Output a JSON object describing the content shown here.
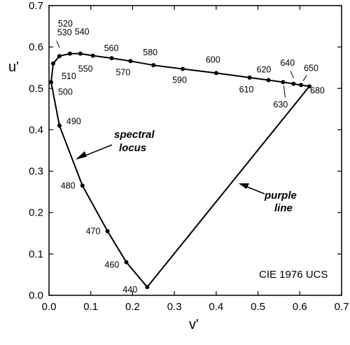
{
  "chart_data": {
    "type": "scatter",
    "title": "",
    "xlabel": "v'",
    "ylabel": "u'",
    "xlim": [
      0.0,
      0.7
    ],
    "ylim": [
      0.0,
      0.7
    ],
    "xticks": [
      "0.0",
      "0.1",
      "0.2",
      "0.3",
      "0.4",
      "0.5",
      "0.6",
      "0.7"
    ],
    "yticks": [
      "0.0",
      "0.1",
      "0.2",
      "0.3",
      "0.4",
      "0.5",
      "0.6",
      "0.7"
    ],
    "grid": false,
    "series": [
      {
        "name": "",
        "points": [
          {
            "label": "440",
            "x": 0.235,
            "y": 0.02
          },
          {
            "label": "460",
            "x": 0.185,
            "y": 0.08
          },
          {
            "label": "470",
            "x": 0.14,
            "y": 0.155
          },
          {
            "label": "480",
            "x": 0.08,
            "y": 0.265
          },
          {
            "label": "490",
            "x": 0.025,
            "y": 0.41
          },
          {
            "label": "500",
            "x": 0.005,
            "y": 0.515
          },
          {
            "label": "510",
            "x": 0.01,
            "y": 0.56
          },
          {
            "label": "520",
            "x": 0.025,
            "y": 0.578
          },
          {
            "label": "530",
            "x": 0.05,
            "y": 0.584
          },
          {
            "label": "540",
            "x": 0.075,
            "y": 0.584
          },
          {
            "label": "550",
            "x": 0.105,
            "y": 0.579
          },
          {
            "label": "560",
            "x": 0.15,
            "y": 0.573
          },
          {
            "label": "570",
            "x": 0.195,
            "y": 0.566
          },
          {
            "label": "580",
            "x": 0.25,
            "y": 0.556
          },
          {
            "label": "590",
            "x": 0.32,
            "y": 0.547
          },
          {
            "label": "600",
            "x": 0.4,
            "y": 0.537
          },
          {
            "label": "610",
            "x": 0.48,
            "y": 0.526
          },
          {
            "label": "620",
            "x": 0.525,
            "y": 0.52
          },
          {
            "label": "630",
            "x": 0.56,
            "y": 0.515
          },
          {
            "label": "640",
            "x": 0.585,
            "y": 0.511
          },
          {
            "label": "650",
            "x": 0.603,
            "y": 0.508
          },
          {
            "label": "680",
            "x": 0.623,
            "y": 0.505
          }
        ]
      }
    ],
    "annotations": [
      {
        "text_lines": [
          "spectral",
          "locus"
        ],
        "points_to": "curve"
      },
      {
        "text_lines": [
          "purple",
          "line"
        ],
        "points_to": "line"
      }
    ],
    "watermark": "CIE 1976 UCS"
  }
}
